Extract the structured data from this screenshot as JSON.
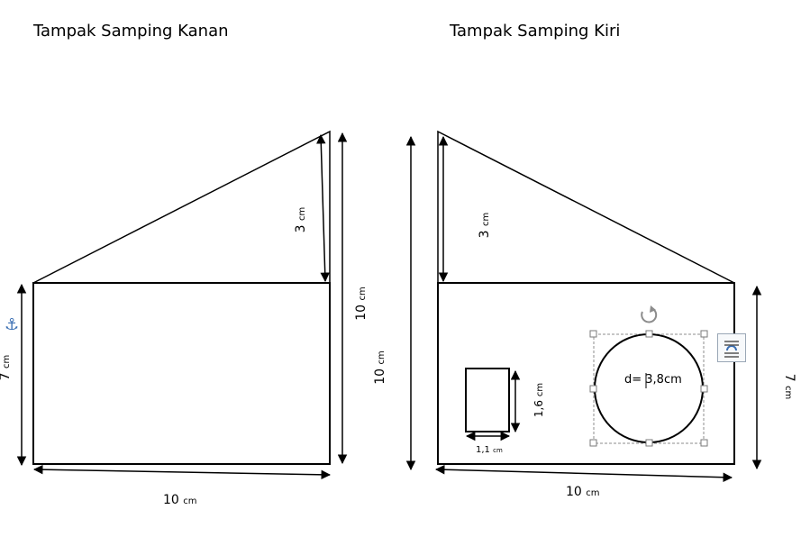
{
  "titles": {
    "right_view": "Tampak Samping Kanan",
    "left_view": "Tampak Samping Kiri"
  },
  "right_view": {
    "roof_height": {
      "value": "3",
      "unit": "cm"
    },
    "total_height": {
      "value": "10",
      "unit": "cm"
    },
    "wall_height": {
      "value": "7",
      "unit": "cm"
    },
    "width": {
      "value": "10",
      "unit": "cm"
    }
  },
  "left_view": {
    "roof_height": {
      "value": "3",
      "unit": "cm"
    },
    "total_height": {
      "value": "10",
      "unit": "cm"
    },
    "wall_height": {
      "value": "7",
      "unit": "cm"
    },
    "width": {
      "value": "10",
      "unit": "cm"
    },
    "window_height": {
      "value": "1,6",
      "unit": "cm"
    },
    "window_width": {
      "value": "1,1",
      "unit": "cm"
    },
    "circle_label": "d= 3,8cm"
  },
  "icons": {
    "anchor": "anchor-icon",
    "rotate": "rotate-handle-icon",
    "layout_options": "layout-options-icon"
  },
  "colors": {
    "anchor": "#3b6fb3",
    "selection": "#8c8c8c"
  }
}
